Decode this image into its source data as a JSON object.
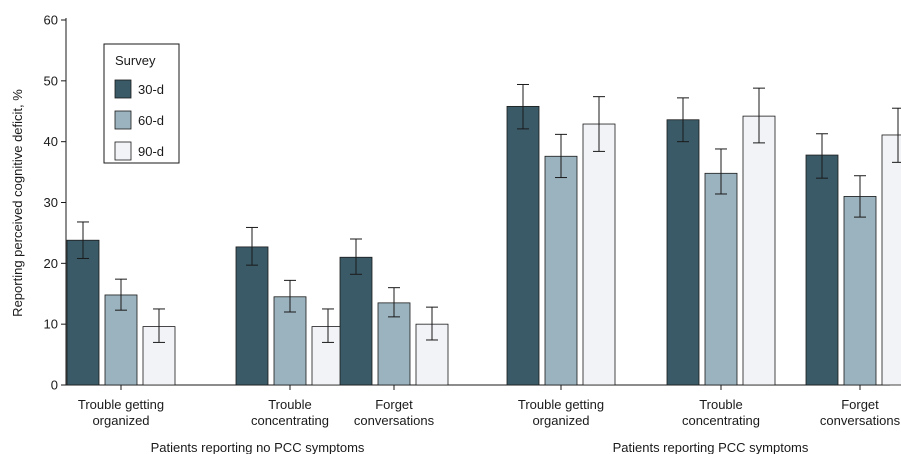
{
  "chart_data": {
    "type": "bar",
    "ylabel": "Reporting perceived cognitive deficit, %",
    "ylim": [
      0,
      60
    ],
    "yticks": [
      0,
      10,
      20,
      30,
      40,
      50,
      60
    ],
    "grid": false,
    "legend": {
      "title": "Survey",
      "placement": "top-left"
    },
    "series": [
      {
        "name": "30-d",
        "color": "#3a5a68"
      },
      {
        "name": "60-d",
        "color": "#9bb3be"
      },
      {
        "name": "90-d",
        "color": "#f1f3f6"
      }
    ],
    "groups": [
      {
        "label": "Patients reporting no PCC symptoms",
        "categories": [
          {
            "label": [
              "Trouble getting",
              "organized"
            ],
            "values": [
              23.8,
              14.8,
              9.6
            ],
            "errors": [
              [
                20.8,
                26.8
              ],
              [
                12.3,
                17.4
              ],
              [
                7.0,
                12.5
              ]
            ]
          },
          {
            "label": [
              "Trouble",
              "concentrating"
            ],
            "values": [
              22.7,
              14.5,
              9.6
            ],
            "errors": [
              [
                19.7,
                25.9
              ],
              [
                12.0,
                17.2
              ],
              [
                7.0,
                12.5
              ]
            ]
          },
          {
            "label": [
              "Forget",
              "conversations"
            ],
            "values": [
              21.0,
              13.5,
              10.0
            ],
            "errors": [
              [
                18.2,
                24.0
              ],
              [
                11.2,
                16.0
              ],
              [
                7.4,
                12.8
              ]
            ]
          }
        ]
      },
      {
        "label": "Patients reporting PCC symptoms",
        "categories": [
          {
            "label": [
              "Trouble getting",
              "organized"
            ],
            "values": [
              45.8,
              37.6,
              42.9
            ],
            "errors": [
              [
                42.1,
                49.4
              ],
              [
                34.1,
                41.2
              ],
              [
                38.4,
                47.4
              ]
            ]
          },
          {
            "label": [
              "Trouble",
              "concentrating"
            ],
            "values": [
              43.6,
              34.8,
              44.2
            ],
            "errors": [
              [
                40.0,
                47.2
              ],
              [
                31.4,
                38.8
              ],
              [
                39.8,
                48.8
              ]
            ]
          },
          {
            "label": [
              "Forget",
              "conversations"
            ],
            "values": [
              37.8,
              31.0,
              41.1
            ],
            "errors": [
              [
                34.0,
                41.3
              ],
              [
                27.6,
                34.4
              ],
              [
                36.6,
                45.5
              ]
            ]
          }
        ]
      }
    ]
  }
}
